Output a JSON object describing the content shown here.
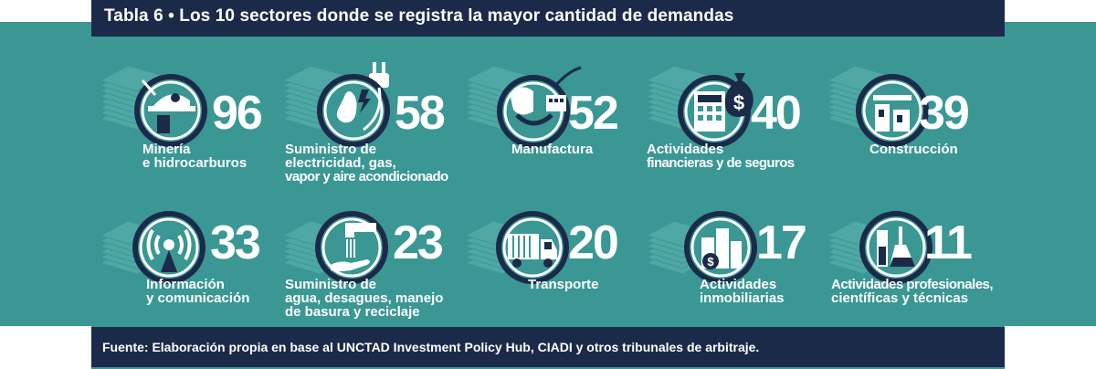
{
  "header": {
    "title": "Tabla 6 • Los 10 sectores donde se registra la mayor cantidad de demandas"
  },
  "footer": {
    "source": "Fuente: Elaboración propia en base al UNCTAD Investment Policy Hub, CIADI y otros tribunales de arbitraje."
  },
  "colors": {
    "teal": "#3a9794",
    "navy": "#1c2a4a",
    "icon_fill": "#3a9794",
    "stack": "#4fa8a4"
  },
  "sectors": [
    {
      "value": "96",
      "label": [
        "Minería",
        "e hidrocarburos"
      ],
      "icon": "mining-helmet-icon"
    },
    {
      "value": "58",
      "label": [
        "Suministro de",
        "electricidad, gas,",
        "vapor y aire acondicionado"
      ],
      "icon": "electric-plug-icon"
    },
    {
      "value": "52",
      "label": [
        "Manufactura"
      ],
      "icon": "robot-arm-icon"
    },
    {
      "value": "40",
      "label": [
        "Actividades",
        "financieras y de seguros"
      ],
      "icon": "calculator-money-bag-icon"
    },
    {
      "value": "39",
      "label": [
        "Construcción"
      ],
      "icon": "building-construction-icon"
    },
    {
      "value": "33",
      "label": [
        "Información",
        "y comunicación"
      ],
      "icon": "antenna-broadcast-icon"
    },
    {
      "value": "23",
      "label": [
        "Suministro de",
        "agua, desagues, manejo",
        "de basura y reciclaje"
      ],
      "icon": "water-tap-hand-icon"
    },
    {
      "value": "20",
      "label": [
        "Transporte"
      ],
      "icon": "truck-icon"
    },
    {
      "value": "17",
      "label": [
        "Actividades",
        "inmobiliarias"
      ],
      "icon": "real-estate-buildings-icon"
    },
    {
      "value": "11",
      "label": [
        "Actividades profesionales,",
        "científicas y técnicas"
      ],
      "icon": "lab-flask-icon"
    }
  ]
}
